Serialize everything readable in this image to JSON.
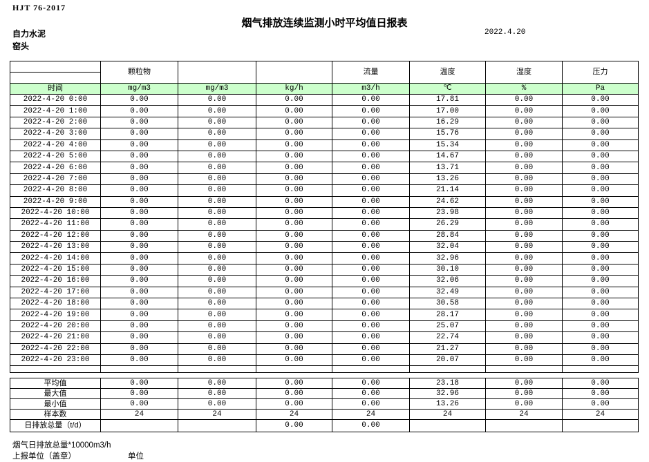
{
  "meta": {
    "standard": "HJT  76-2017",
    "title": "烟气排放连续监测小时平均值日报表",
    "date": "2022.4.20",
    "company": "自力水泥",
    "location": "窑头"
  },
  "colors": {
    "header_green": "#ccffcc",
    "border": "#000000"
  },
  "table": {
    "group_headers": [
      "",
      "颗粒物",
      "",
      "",
      "流量",
      "温度",
      "湿度",
      "压力"
    ],
    "unit_row": [
      "时间",
      "mg/m3",
      "mg/m3",
      "kg/h",
      "m3/h",
      "℃",
      "%",
      "Pa"
    ],
    "rows": [
      {
        "time": "2022-4-20 0:00",
        "values": [
          "0.00",
          "0.00",
          "0.00",
          "0.00",
          "17.81",
          "0.00",
          "0.00"
        ]
      },
      {
        "time": "2022-4-20 1:00",
        "values": [
          "0.00",
          "0.00",
          "0.00",
          "0.00",
          "17.00",
          "0.00",
          "0.00"
        ]
      },
      {
        "time": "2022-4-20 2:00",
        "values": [
          "0.00",
          "0.00",
          "0.00",
          "0.00",
          "16.29",
          "0.00",
          "0.00"
        ]
      },
      {
        "time": "2022-4-20 3:00",
        "values": [
          "0.00",
          "0.00",
          "0.00",
          "0.00",
          "15.76",
          "0.00",
          "0.00"
        ]
      },
      {
        "time": "2022-4-20 4:00",
        "values": [
          "0.00",
          "0.00",
          "0.00",
          "0.00",
          "15.34",
          "0.00",
          "0.00"
        ]
      },
      {
        "time": "2022-4-20 5:00",
        "values": [
          "0.00",
          "0.00",
          "0.00",
          "0.00",
          "14.67",
          "0.00",
          "0.00"
        ]
      },
      {
        "time": "2022-4-20 6:00",
        "values": [
          "0.00",
          "0.00",
          "0.00",
          "0.00",
          "13.71",
          "0.00",
          "0.00"
        ]
      },
      {
        "time": "2022-4-20 7:00",
        "values": [
          "0.00",
          "0.00",
          "0.00",
          "0.00",
          "13.26",
          "0.00",
          "0.00"
        ]
      },
      {
        "time": "2022-4-20 8:00",
        "values": [
          "0.00",
          "0.00",
          "0.00",
          "0.00",
          "21.14",
          "0.00",
          "0.00"
        ]
      },
      {
        "time": "2022-4-20 9:00",
        "values": [
          "0.00",
          "0.00",
          "0.00",
          "0.00",
          "24.62",
          "0.00",
          "0.00"
        ]
      },
      {
        "time": "2022-4-20 10:00",
        "values": [
          "0.00",
          "0.00",
          "0.00",
          "0.00",
          "23.98",
          "0.00",
          "0.00"
        ]
      },
      {
        "time": "2022-4-20 11:00",
        "values": [
          "0.00",
          "0.00",
          "0.00",
          "0.00",
          "26.29",
          "0.00",
          "0.00"
        ]
      },
      {
        "time": "2022-4-20 12:00",
        "values": [
          "0.00",
          "0.00",
          "0.00",
          "0.00",
          "28.84",
          "0.00",
          "0.00"
        ]
      },
      {
        "time": "2022-4-20 13:00",
        "values": [
          "0.00",
          "0.00",
          "0.00",
          "0.00",
          "32.04",
          "0.00",
          "0.00"
        ]
      },
      {
        "time": "2022-4-20 14:00",
        "values": [
          "0.00",
          "0.00",
          "0.00",
          "0.00",
          "32.96",
          "0.00",
          "0.00"
        ]
      },
      {
        "time": "2022-4-20 15:00",
        "values": [
          "0.00",
          "0.00",
          "0.00",
          "0.00",
          "30.10",
          "0.00",
          "0.00"
        ]
      },
      {
        "time": "2022-4-20 16:00",
        "values": [
          "0.00",
          "0.00",
          "0.00",
          "0.00",
          "32.06",
          "0.00",
          "0.00"
        ]
      },
      {
        "time": "2022-4-20 17:00",
        "values": [
          "0.00",
          "0.00",
          "0.00",
          "0.00",
          "32.49",
          "0.00",
          "0.00"
        ]
      },
      {
        "time": "2022-4-20 18:00",
        "values": [
          "0.00",
          "0.00",
          "0.00",
          "0.00",
          "30.58",
          "0.00",
          "0.00"
        ]
      },
      {
        "time": "2022-4-20 19:00",
        "values": [
          "0.00",
          "0.00",
          "0.00",
          "0.00",
          "28.17",
          "0.00",
          "0.00"
        ]
      },
      {
        "time": "2022-4-20 20:00",
        "values": [
          "0.00",
          "0.00",
          "0.00",
          "0.00",
          "25.07",
          "0.00",
          "0.00"
        ]
      },
      {
        "time": "2022-4-20 21:00",
        "values": [
          "0.00",
          "0.00",
          "0.00",
          "0.00",
          "22.74",
          "0.00",
          "0.00"
        ]
      },
      {
        "time": "2022-4-20 22:00",
        "values": [
          "0.00",
          "0.00",
          "0.00",
          "0.00",
          "21.27",
          "0.00",
          "0.00"
        ]
      },
      {
        "time": "2022-4-20 23:00",
        "values": [
          "0.00",
          "0.00",
          "0.00",
          "0.00",
          "20.07",
          "0.00",
          "0.00"
        ]
      }
    ],
    "summary": [
      {
        "label": "平均值",
        "values": [
          "0.00",
          "0.00",
          "0.00",
          "0.00",
          "23.18",
          "0.00",
          "0.00"
        ]
      },
      {
        "label": "最大值",
        "values": [
          "0.00",
          "0.00",
          "0.00",
          "0.00",
          "32.96",
          "0.00",
          "0.00"
        ]
      },
      {
        "label": "最小值",
        "values": [
          "0.00",
          "0.00",
          "0.00",
          "0.00",
          "13.26",
          "0.00",
          "0.00"
        ]
      },
      {
        "label": "样本数",
        "values": [
          "24",
          "24",
          "24",
          "24",
          "24",
          "24",
          "24"
        ]
      },
      {
        "label": "日排放总量（t/d）",
        "values": [
          "",
          "",
          "0.00",
          "0.00",
          "",
          "",
          ""
        ]
      }
    ]
  },
  "footer": {
    "note": "烟气日排放总量*10000m3/h",
    "report_unit": "上报单位（盖章）",
    "unit_label": "单位"
  }
}
